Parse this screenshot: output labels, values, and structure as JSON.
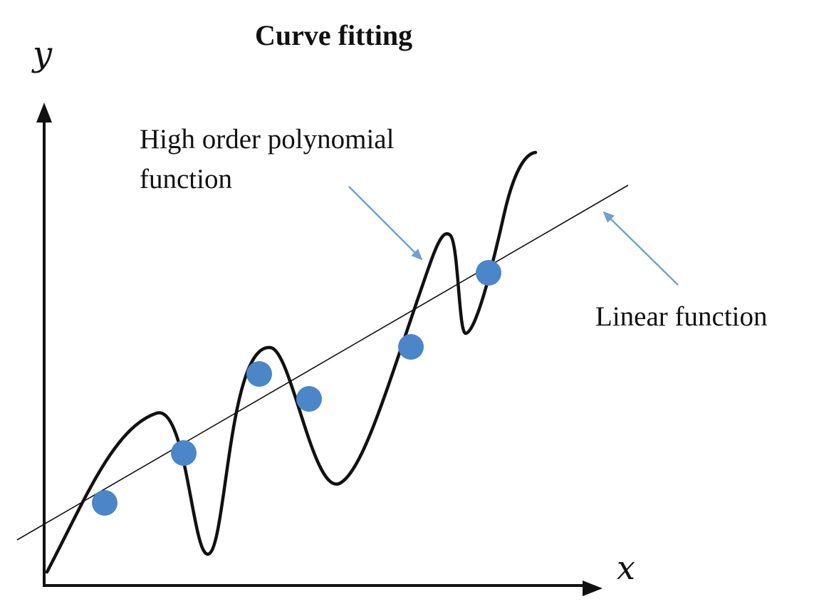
{
  "title": "Curve fitting",
  "axes": {
    "x_label": "x",
    "y_label": "y"
  },
  "annotations": {
    "polynomial_line1": "High order polynomial",
    "polynomial_line2": "function",
    "linear": "Linear function"
  },
  "colors": {
    "curve": "#111111",
    "points": "#4a86c8",
    "arrow": "#6fa0d0"
  },
  "data_points": [
    {
      "x": 1.0,
      "y": 1.0
    },
    {
      "x": 2.0,
      "y": 2.0
    },
    {
      "x": 3.0,
      "y": 3.9
    },
    {
      "x": 3.7,
      "y": 3.2
    },
    {
      "x": 5.0,
      "y": 4.4
    },
    {
      "x": 6.0,
      "y": 5.2
    }
  ]
}
